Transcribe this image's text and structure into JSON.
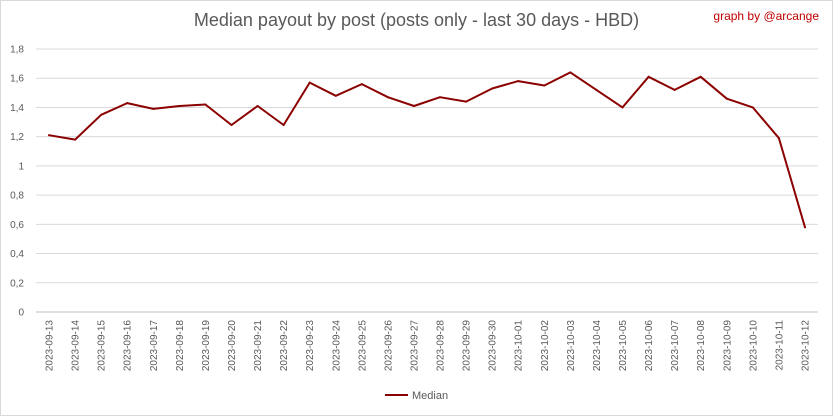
{
  "chart_data": {
    "type": "line",
    "title": "Median payout by post (posts only - last 30 days - HBD)",
    "annotation": "graph by @arcange",
    "xlabel": "",
    "ylabel": "",
    "ylim": [
      0,
      1.8
    ],
    "yticks": [
      "0",
      "0,2",
      "0,4",
      "0,6",
      "0,8",
      "1",
      "1,2",
      "1,4",
      "1,6",
      "1,8"
    ],
    "grid": true,
    "legend_position": "bottom",
    "categories": [
      "2023-09-13",
      "2023-09-14",
      "2023-09-15",
      "2023-09-16",
      "2023-09-17",
      "2023-09-18",
      "2023-09-19",
      "2023-09-20",
      "2023-09-21",
      "2023-09-22",
      "2023-09-23",
      "2023-09-24",
      "2023-09-25",
      "2023-09-26",
      "2023-09-27",
      "2023-09-28",
      "2023-09-29",
      "2023-09-30",
      "2023-10-01",
      "2023-10-02",
      "2023-10-03",
      "2023-10-04",
      "2023-10-05",
      "2023-10-06",
      "2023-10-07",
      "2023-10-08",
      "2023-10-09",
      "2023-10-10",
      "2023-10-11",
      "2023-10-12"
    ],
    "series": [
      {
        "name": "Median",
        "color": "#8b0000",
        "values": [
          1.21,
          1.18,
          1.35,
          1.43,
          1.39,
          1.41,
          1.42,
          1.28,
          1.41,
          1.28,
          1.57,
          1.48,
          1.56,
          1.47,
          1.41,
          1.47,
          1.44,
          1.53,
          1.58,
          1.55,
          1.64,
          1.52,
          1.4,
          1.61,
          1.52,
          1.61,
          1.46,
          1.4,
          1.19,
          0.58
        ]
      }
    ]
  },
  "colors": {
    "line": "#8b0000",
    "credit": "#c00000",
    "grid": "#d9d9d9",
    "text": "#595959"
  }
}
